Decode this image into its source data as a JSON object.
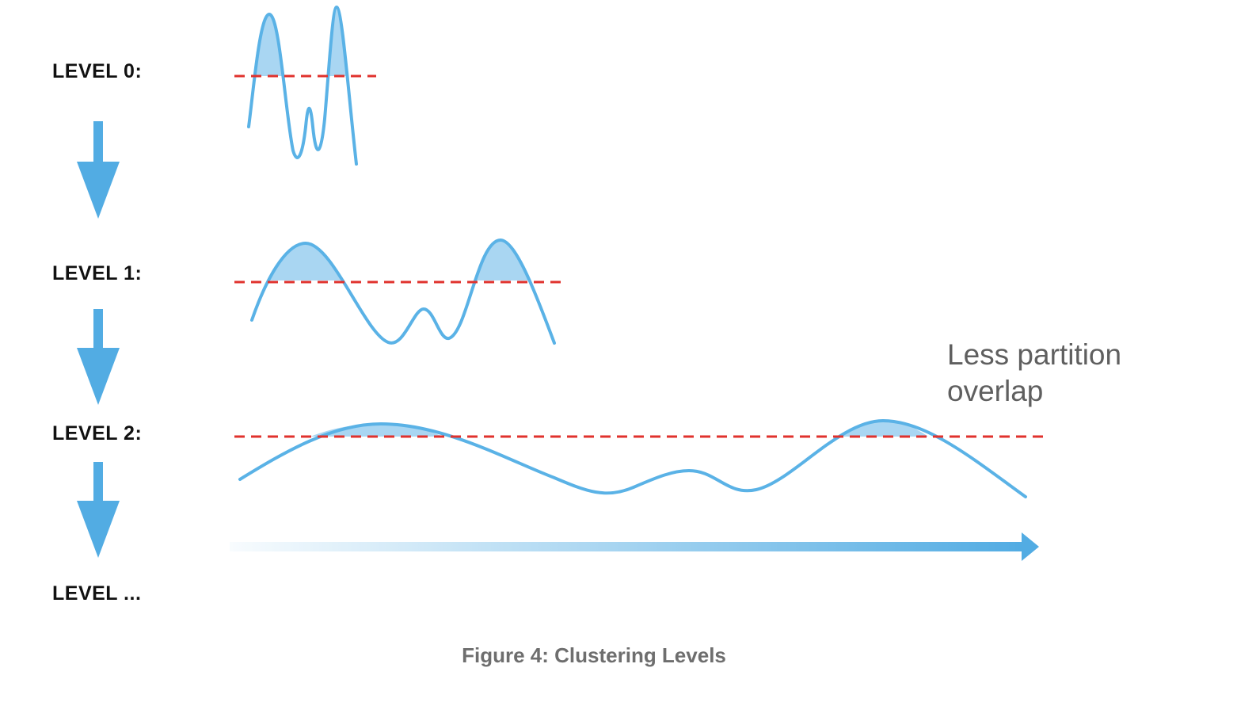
{
  "levels": [
    {
      "label": "LEVEL 0:"
    },
    {
      "label": "LEVEL 1:"
    },
    {
      "label": "LEVEL 2:"
    },
    {
      "label": "LEVEL ..."
    }
  ],
  "annotation": {
    "line1": "Less partition",
    "line2": "overlap"
  },
  "caption": "Figure 4: Clustering Levels",
  "colors": {
    "curve": "#5ab2e6",
    "fill": "#a9d6f2",
    "threshold": "#e0322d",
    "arrow": "#52ace3",
    "label": "#111111",
    "annotation": "#5f5f5f",
    "caption": "#6e6e6e"
  }
}
